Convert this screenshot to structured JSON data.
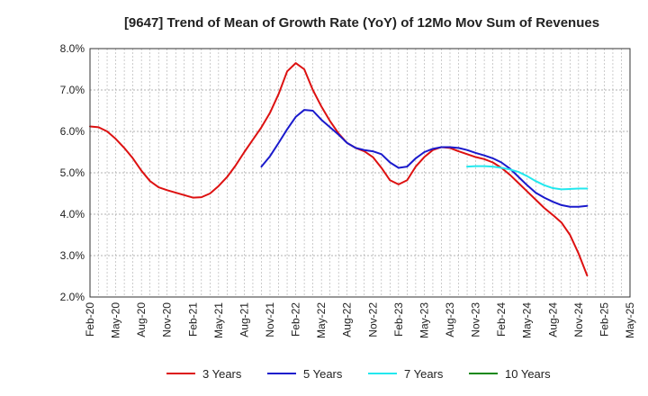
{
  "chart_data": {
    "type": "line",
    "title": "[9647]  Trend of Mean of Growth Rate (YoY) of 12Mo Mov Sum of Revenues",
    "xlabel": "",
    "ylabel": "",
    "ylim": [
      2.0,
      8.0
    ],
    "y_ticks": [
      "2.0%",
      "3.0%",
      "4.0%",
      "5.0%",
      "6.0%",
      "7.0%",
      "8.0%"
    ],
    "y_tick_values": [
      2,
      3,
      4,
      5,
      6,
      7,
      8
    ],
    "x_ticks": [
      "Feb-20",
      "May-20",
      "Aug-20",
      "Nov-20",
      "Feb-21",
      "May-21",
      "Aug-21",
      "Nov-21",
      "Feb-22",
      "May-22",
      "Aug-22",
      "Nov-22",
      "Feb-23",
      "May-23",
      "Aug-23",
      "Nov-23",
      "Feb-24",
      "May-24",
      "Aug-24",
      "Nov-24",
      "Feb-25",
      "May-25"
    ],
    "x_months_total": 63,
    "grid": true,
    "legend_position": "bottom",
    "series": [
      {
        "name": "3 Years",
        "color": "#dd1111",
        "start_month": 0,
        "values": [
          6.12,
          6.1,
          6.0,
          5.82,
          5.6,
          5.35,
          5.05,
          4.8,
          4.65,
          4.58,
          4.52,
          4.46,
          4.4,
          4.41,
          4.5,
          4.68,
          4.9,
          5.18,
          5.5,
          5.8,
          6.1,
          6.45,
          6.9,
          7.45,
          7.65,
          7.5,
          7.0,
          6.6,
          6.25,
          5.95,
          5.72,
          5.6,
          5.52,
          5.38,
          5.12,
          4.82,
          4.72,
          4.82,
          5.15,
          5.38,
          5.55,
          5.62,
          5.6,
          5.52,
          5.45,
          5.38,
          5.33,
          5.25,
          5.12,
          4.95,
          4.75,
          4.55,
          4.35,
          4.15,
          3.98,
          3.8,
          3.5,
          3.05,
          2.52
        ]
      },
      {
        "name": "5 Years",
        "color": "#1a1acc",
        "start_month": 20,
        "values": [
          5.15,
          5.4,
          5.72,
          6.05,
          6.35,
          6.52,
          6.5,
          6.28,
          6.1,
          5.92,
          5.72,
          5.6,
          5.55,
          5.52,
          5.45,
          5.25,
          5.12,
          5.15,
          5.35,
          5.5,
          5.58,
          5.62,
          5.62,
          5.6,
          5.55,
          5.48,
          5.42,
          5.35,
          5.25,
          5.1,
          4.9,
          4.7,
          4.52,
          4.4,
          4.3,
          4.22,
          4.18,
          4.18,
          4.2
        ]
      },
      {
        "name": "7 Years",
        "color": "#22e8ee",
        "start_month": 44,
        "values": [
          5.15,
          5.16,
          5.16,
          5.15,
          5.12,
          5.08,
          5.02,
          4.92,
          4.8,
          4.7,
          4.63,
          4.6,
          4.61,
          4.62,
          4.62
        ]
      },
      {
        "name": "10 Years",
        "color": "#118811",
        "start_month": 44,
        "values": []
      }
    ]
  }
}
